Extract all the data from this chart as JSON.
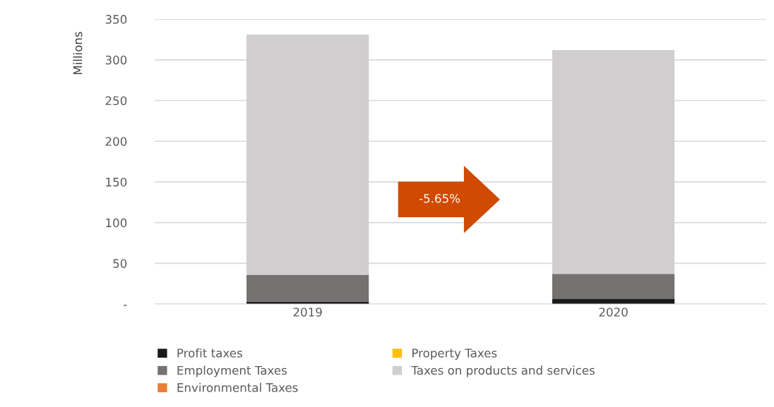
{
  "chart_data": {
    "type": "bar",
    "stacked": true,
    "ylabel": "Millions",
    "categories": [
      "2019",
      "2020"
    ],
    "series": [
      {
        "name": "Profit taxes",
        "color": "#1a1a1a",
        "values": [
          3,
          6
        ]
      },
      {
        "name": "Property Taxes",
        "color": "#ffc000",
        "values": [
          0,
          0
        ]
      },
      {
        "name": "Employment Taxes",
        "color": "#767171",
        "values": [
          33,
          31
        ]
      },
      {
        "name": "Taxes on products and services",
        "color": "#d0cece",
        "values": [
          295,
          275
        ]
      },
      {
        "name": "Environmental Taxes",
        "color": "#ed7d31",
        "values": [
          0,
          0
        ]
      }
    ],
    "ylim": [
      0,
      350
    ],
    "yticks": [
      {
        "value": 0,
        "label": "-"
      },
      50,
      100,
      150,
      200,
      250,
      300,
      350
    ],
    "grid": "y",
    "legend": "bottom",
    "annotations": [
      "-5.65%"
    ]
  }
}
